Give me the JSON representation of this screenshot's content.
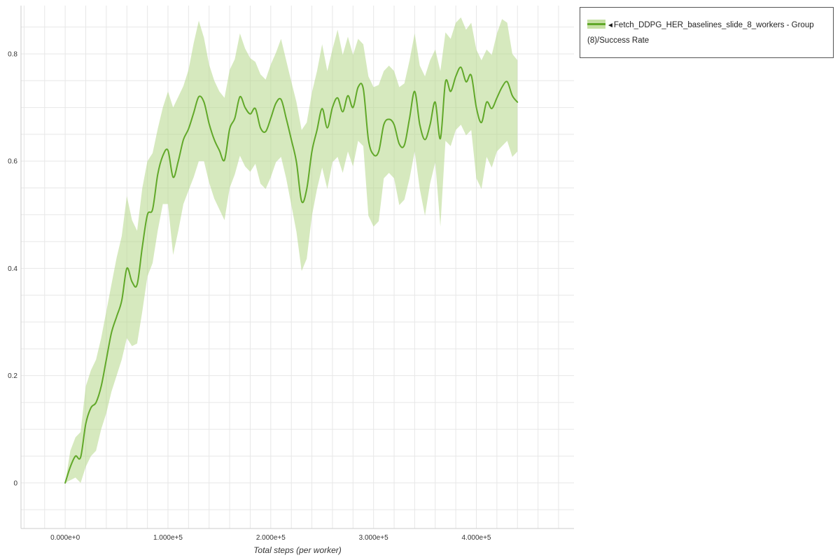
{
  "page": {
    "background": "#ffffff"
  },
  "legend": {
    "marker": "◄",
    "label": "Fetch_DDPG_HER_baselines_slide_8_workers - Group (8)/Success Rate",
    "swatch_line_color": "#61a829",
    "swatch_fill_color": "#c6e0a4"
  },
  "chart_data": {
    "type": "line",
    "title": "",
    "xlabel": "Total steps (per worker)",
    "ylabel": "",
    "legend_position": "top-right-outside",
    "grid": {
      "on": true,
      "x_step": 20000,
      "y_step": 0.05,
      "color": "#e7e7e7"
    },
    "xlim": [
      -43000,
      495000
    ],
    "ylim": [
      -0.085,
      0.89
    ],
    "x_tick_values": [
      0,
      100000,
      200000,
      300000,
      400000
    ],
    "x_tick_labels": [
      "0.000e+0",
      "1.000e+5",
      "2.000e+5",
      "3.000e+5",
      "4.000e+5"
    ],
    "y_tick_values": [
      0,
      0.2,
      0.4,
      0.6,
      0.8
    ],
    "y_tick_labels": [
      "0",
      "0.2",
      "0.4",
      "0.6",
      "0.8"
    ],
    "series": [
      {
        "name": "Fetch_DDPG_HER_baselines_slide_8_workers - Group (8)/Success Rate",
        "line_color": "#61a829",
        "band_color": "#b5d789",
        "band_opacity": 0.55,
        "x": [
          0,
          5000,
          10000,
          15000,
          20000,
          25000,
          30000,
          35000,
          40000,
          45000,
          50000,
          55000,
          60000,
          65000,
          70000,
          75000,
          80000,
          85000,
          90000,
          95000,
          100000,
          105000,
          110000,
          115000,
          120000,
          125000,
          130000,
          135000,
          140000,
          145000,
          150000,
          155000,
          160000,
          165000,
          170000,
          175000,
          180000,
          185000,
          190000,
          195000,
          200000,
          205000,
          210000,
          215000,
          220000,
          225000,
          230000,
          235000,
          240000,
          245000,
          250000,
          255000,
          260000,
          265000,
          270000,
          275000,
          280000,
          285000,
          290000,
          295000,
          300000,
          305000,
          310000,
          315000,
          320000,
          325000,
          330000,
          335000,
          340000,
          345000,
          350000,
          355000,
          360000,
          365000,
          370000,
          375000,
          380000,
          385000,
          390000,
          395000,
          400000,
          405000,
          410000,
          415000,
          420000,
          425000,
          430000,
          435000,
          440000
        ],
        "mean": [
          0.0,
          0.03,
          0.05,
          0.048,
          0.11,
          0.14,
          0.15,
          0.18,
          0.23,
          0.28,
          0.31,
          0.34,
          0.4,
          0.375,
          0.37,
          0.44,
          0.5,
          0.51,
          0.575,
          0.61,
          0.62,
          0.57,
          0.6,
          0.64,
          0.66,
          0.69,
          0.72,
          0.71,
          0.67,
          0.64,
          0.62,
          0.602,
          0.66,
          0.68,
          0.72,
          0.7,
          0.688,
          0.698,
          0.662,
          0.655,
          0.68,
          0.708,
          0.715,
          0.68,
          0.64,
          0.598,
          0.525,
          0.548,
          0.618,
          0.658,
          0.698,
          0.662,
          0.7,
          0.718,
          0.692,
          0.722,
          0.7,
          0.738,
          0.735,
          0.64,
          0.612,
          0.618,
          0.668,
          0.678,
          0.668,
          0.632,
          0.63,
          0.68,
          0.73,
          0.668,
          0.64,
          0.668,
          0.71,
          0.642,
          0.748,
          0.73,
          0.758,
          0.775,
          0.748,
          0.76,
          0.7,
          0.672,
          0.71,
          0.698,
          0.718,
          0.738,
          0.748,
          0.722,
          0.71
        ],
        "lower": [
          0.0,
          0.005,
          0.01,
          0.0,
          0.03,
          0.05,
          0.06,
          0.1,
          0.13,
          0.17,
          0.2,
          0.23,
          0.27,
          0.255,
          0.26,
          0.32,
          0.385,
          0.41,
          0.47,
          0.52,
          0.52,
          0.425,
          0.47,
          0.52,
          0.545,
          0.57,
          0.6,
          0.6,
          0.56,
          0.53,
          0.51,
          0.49,
          0.55,
          0.575,
          0.61,
          0.59,
          0.58,
          0.595,
          0.558,
          0.548,
          0.57,
          0.598,
          0.608,
          0.568,
          0.518,
          0.468,
          0.395,
          0.418,
          0.498,
          0.548,
          0.588,
          0.548,
          0.598,
          0.608,
          0.578,
          0.618,
          0.59,
          0.638,
          0.628,
          0.498,
          0.478,
          0.488,
          0.568,
          0.578,
          0.568,
          0.518,
          0.528,
          0.568,
          0.618,
          0.548,
          0.498,
          0.558,
          0.598,
          0.478,
          0.638,
          0.628,
          0.658,
          0.668,
          0.648,
          0.658,
          0.568,
          0.548,
          0.608,
          0.588,
          0.618,
          0.628,
          0.638,
          0.608,
          0.618
        ],
        "upper": [
          0.0,
          0.06,
          0.085,
          0.095,
          0.18,
          0.21,
          0.23,
          0.27,
          0.32,
          0.37,
          0.42,
          0.46,
          0.535,
          0.49,
          0.47,
          0.55,
          0.6,
          0.615,
          0.66,
          0.7,
          0.73,
          0.7,
          0.72,
          0.74,
          0.77,
          0.82,
          0.862,
          0.83,
          0.78,
          0.75,
          0.73,
          0.718,
          0.77,
          0.79,
          0.838,
          0.81,
          0.792,
          0.785,
          0.762,
          0.752,
          0.78,
          0.802,
          0.828,
          0.788,
          0.748,
          0.71,
          0.658,
          0.672,
          0.728,
          0.768,
          0.818,
          0.768,
          0.808,
          0.845,
          0.798,
          0.832,
          0.798,
          0.828,
          0.818,
          0.758,
          0.738,
          0.742,
          0.768,
          0.778,
          0.768,
          0.738,
          0.745,
          0.788,
          0.838,
          0.778,
          0.758,
          0.788,
          0.808,
          0.768,
          0.84,
          0.828,
          0.858,
          0.868,
          0.845,
          0.858,
          0.808,
          0.788,
          0.808,
          0.798,
          0.838,
          0.865,
          0.858,
          0.8,
          0.788
        ]
      }
    ]
  }
}
